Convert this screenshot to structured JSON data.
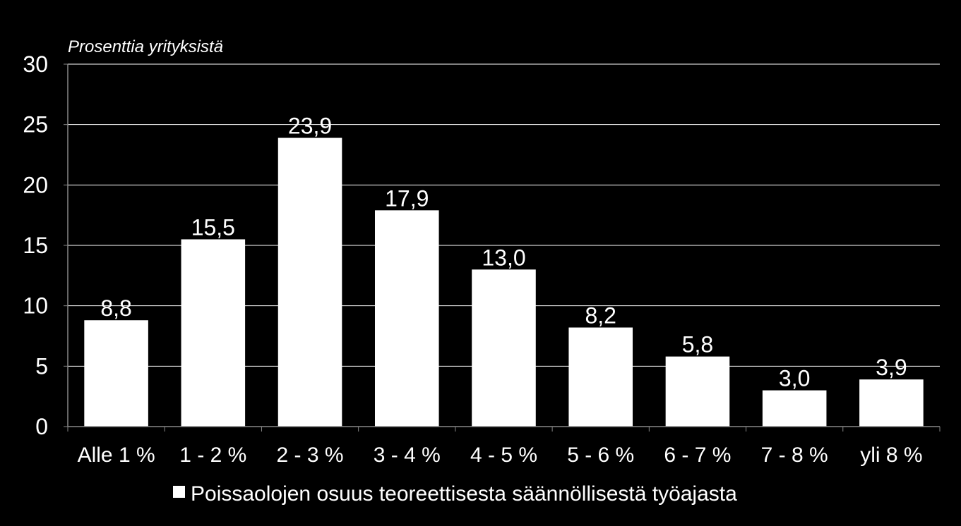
{
  "chart_data": {
    "type": "bar",
    "ylabel": "Prosenttia yrityksistä",
    "categories": [
      "Alle 1 %",
      "1 - 2 %",
      "2 - 3 %",
      "3 - 4 %",
      "4 - 5 %",
      "5 - 6 %",
      "6 - 7 %",
      "7 - 8 %",
      "yli 8 %"
    ],
    "series": [
      {
        "name": "Poissaolojen osuus teoreettisesta säännöllisestä työajasta",
        "values": [
          8.8,
          15.5,
          23.9,
          17.9,
          13.0,
          8.2,
          5.8,
          3.0,
          3.9
        ],
        "labels": [
          "8,8",
          "15,5",
          "23,9",
          "17,9",
          "13,0",
          "8,2",
          "5,8",
          "3,0",
          "3,9"
        ],
        "color": "#ffffff"
      }
    ],
    "yticks": [
      "0",
      "5",
      "10",
      "15",
      "20",
      "25",
      "30"
    ],
    "ylim": [
      0,
      30
    ],
    "grid": true,
    "legend": "bottom",
    "background": "#000000"
  }
}
